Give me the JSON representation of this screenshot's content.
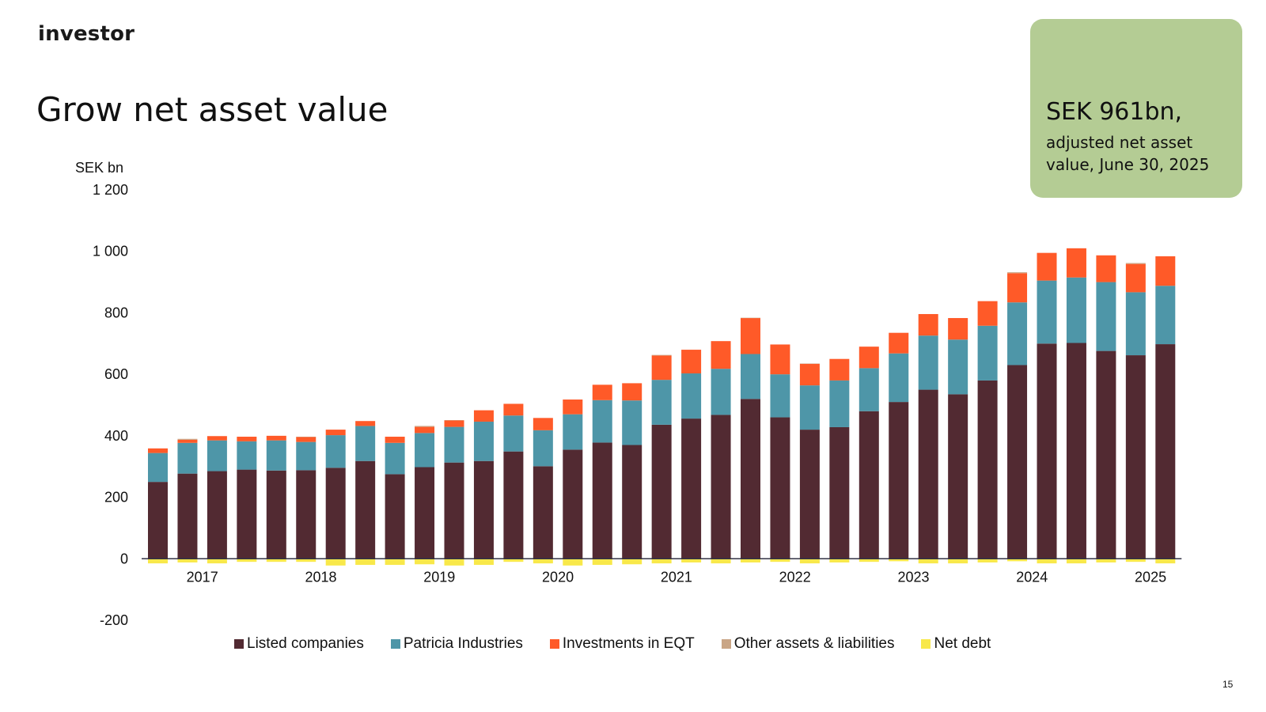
{
  "header": {
    "logo_text": "investor",
    "title": "Grow net asset value"
  },
  "callout": {
    "value": "SEK 961bn,",
    "text": "adjusted net asset value, June 30, 2025",
    "background": "#b4cc94"
  },
  "page_number": "15",
  "chart_data": {
    "type": "bar",
    "stacked": true,
    "ylabel": "SEK bn",
    "ylim": [
      -200,
      1200
    ],
    "yticks": [
      1200,
      1000,
      800,
      600,
      400,
      200,
      0,
      -200
    ],
    "ytick_labels": [
      "1 200",
      "1 000",
      "800",
      "600",
      "400",
      "200",
      "0",
      "-200"
    ],
    "x_year_labels": [
      {
        "label": "2017",
        "index": 1.5
      },
      {
        "label": "2018",
        "index": 5.5
      },
      {
        "label": "2019",
        "index": 9.5
      },
      {
        "label": "2020",
        "index": 13.5
      },
      {
        "label": "2021",
        "index": 17.5
      },
      {
        "label": "2022",
        "index": 21.5
      },
      {
        "label": "2023",
        "index": 25.5
      },
      {
        "label": "2024",
        "index": 29.5
      },
      {
        "label": "2025",
        "index": 33.5
      }
    ],
    "grid": false,
    "legend_position": "bottom",
    "series": [
      {
        "name": "Listed companies",
        "color": "#522a32",
        "values": [
          250,
          277,
          285,
          290,
          287,
          288,
          296,
          318,
          275,
          298,
          313,
          318,
          349,
          301,
          355,
          378,
          370,
          436,
          456,
          468,
          520,
          460,
          420,
          428,
          480,
          510,
          550,
          535,
          580,
          630,
          700,
          702,
          676,
          662,
          698
        ]
      },
      {
        "name": "Patricia Industries",
        "color": "#4e96a8",
        "values": [
          94,
          100,
          100,
          92,
          98,
          92,
          106,
          114,
          102,
          111,
          116,
          128,
          117,
          117,
          115,
          138,
          145,
          146,
          147,
          150,
          146,
          140,
          144,
          152,
          140,
          158,
          176,
          178,
          178,
          204,
          205,
          213,
          224,
          205,
          190
        ]
      },
      {
        "name": "Investments in EQT",
        "color": "#ff5a28",
        "values": [
          15,
          10,
          14,
          15,
          15,
          16,
          18,
          16,
          20,
          20,
          21,
          37,
          38,
          40,
          48,
          50,
          56,
          79,
          77,
          90,
          117,
          97,
          70,
          70,
          70,
          67,
          70,
          70,
          80,
          95,
          90,
          95,
          87,
          92,
          96
        ]
      },
      {
        "name": "Other assets & liabilities",
        "color": "#c9a585",
        "values": [
          0,
          3,
          0,
          0,
          0,
          1,
          0,
          0,
          0,
          3,
          1,
          0,
          0,
          0,
          0,
          0,
          0,
          2,
          0,
          0,
          1,
          0,
          1,
          0,
          0,
          0,
          0,
          0,
          0,
          3,
          0,
          0,
          0,
          3,
          0
        ]
      },
      {
        "name": "Net debt",
        "color": "#f8e84a",
        "values": [
          -15,
          -12,
          -15,
          -10,
          -10,
          -10,
          -22,
          -20,
          -20,
          -18,
          -22,
          -20,
          -10,
          -15,
          -22,
          -20,
          -18,
          -15,
          -12,
          -15,
          -12,
          -10,
          -15,
          -12,
          -10,
          -8,
          -15,
          -15,
          -12,
          -8,
          -15,
          -15,
          -12,
          -10,
          -15
        ]
      }
    ]
  }
}
